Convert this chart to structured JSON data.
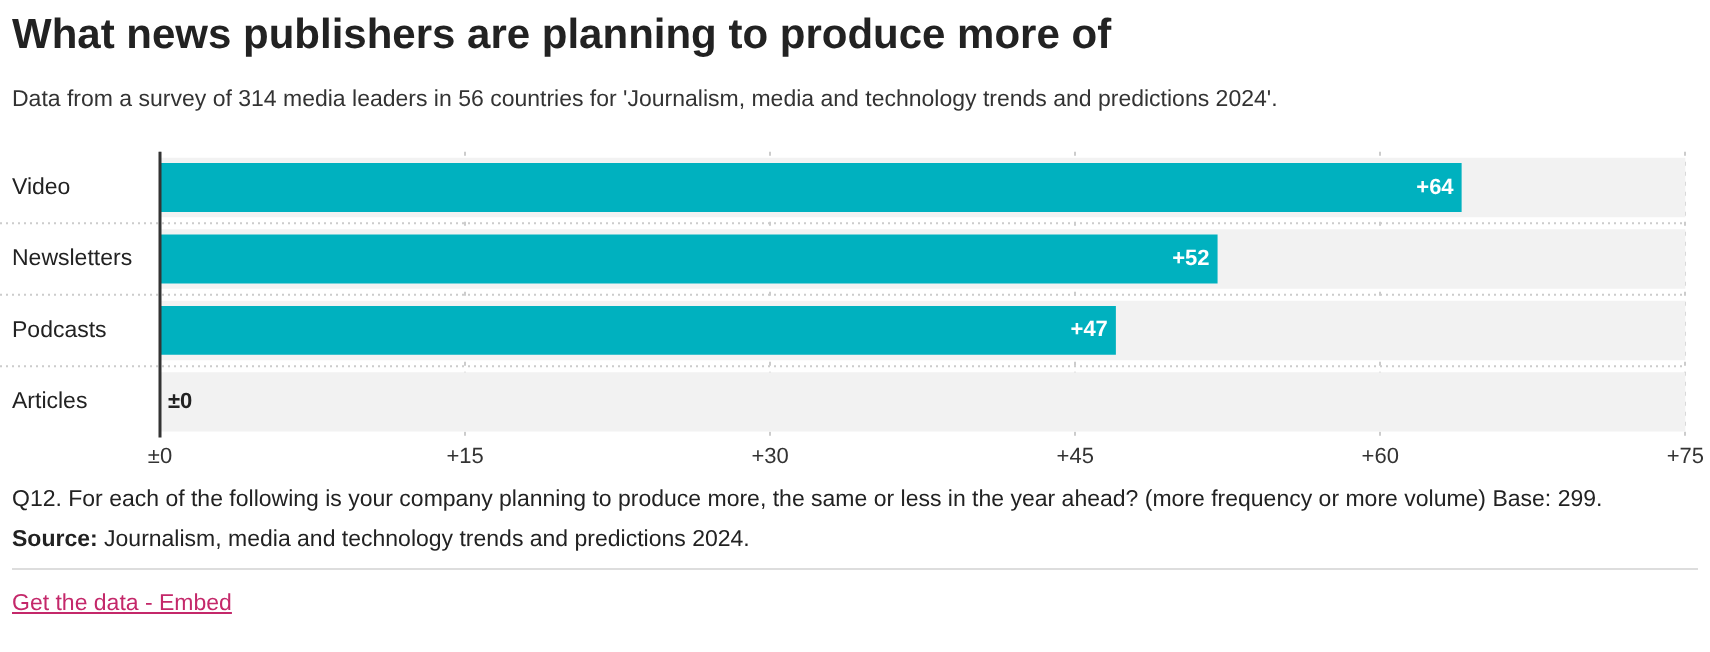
{
  "chart_data": {
    "type": "bar",
    "orientation": "horizontal",
    "title": "What news publishers are planning to produce more of",
    "subtitle": "Data from a survey of 314 media leaders in 56 countries for 'Journalism, media and technology trends and predictions 2024'.",
    "categories": [
      "Video",
      "Newsletters",
      "Podcasts",
      "Articles"
    ],
    "values": [
      64,
      52,
      47,
      0
    ],
    "value_labels": [
      "+64",
      "+52",
      "+47",
      "±0"
    ],
    "color": "#00b1bf",
    "xlim": [
      0,
      75
    ],
    "xticks": [
      {
        "value": 0,
        "label": "±0"
      },
      {
        "value": 15,
        "label": "+15"
      },
      {
        "value": 30,
        "label": "+30"
      },
      {
        "value": 45,
        "label": "+45"
      },
      {
        "value": 60,
        "label": "+60"
      },
      {
        "value": 75,
        "label": "+75"
      }
    ],
    "grid": "x",
    "bands": [
      {
        "axis": "x",
        "from": 0,
        "to": 75,
        "color": "#f2f2f2"
      }
    ],
    "annotations": [
      "Q12. For each of the following is your company planning to produce more, the same or less in the year ahead? (more frequency or more volume) Base: 299.",
      "Source: Journalism, media and technology trends and predictions 2024.",
      "Get the data - Embed"
    ]
  }
}
